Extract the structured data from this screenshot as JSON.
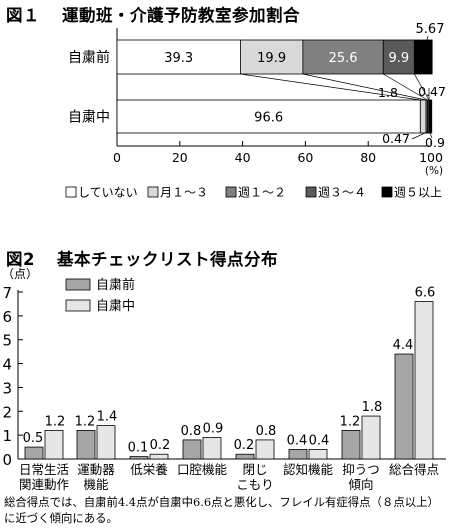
{
  "chart_data": [
    {
      "type": "bar",
      "orientation": "horizontal",
      "stacked": true,
      "title": "運動班・介護予防教室参加割合",
      "figure_label": "図１",
      "categories": [
        "自粛前",
        "自粛中"
      ],
      "series": [
        {
          "name": "していない",
          "values": [
            39.3,
            96.6
          ],
          "color": "#ffffff"
        },
        {
          "name": "月１～３",
          "values": [
            19.9,
            1.8
          ],
          "color": "#d9d9d9"
        },
        {
          "name": "週１～２",
          "values": [
            25.6,
            0.47
          ],
          "color": "#808080"
        },
        {
          "name": "週３～４",
          "values": [
            9.9,
            0.47
          ],
          "color": "#5a5a5a"
        },
        {
          "name": "週５以上",
          "values": [
            5.67,
            0.9
          ],
          "color": "#000000"
        }
      ],
      "data_labels": {
        "自粛前": [
          "39.3",
          "19.9",
          "25.6",
          "9.9",
          "5.67"
        ],
        "自粛中": [
          "96.6",
          "1.8",
          "0.47",
          "0.47",
          "0.9"
        ]
      },
      "xlim": [
        0,
        100
      ],
      "x_ticks": [
        "0",
        "20",
        "40",
        "60",
        "80",
        "100"
      ],
      "x_unit": "(%)",
      "legend_position": "bottom"
    },
    {
      "type": "bar",
      "orientation": "vertical",
      "title": "基本チェックリスト得点分布",
      "figure_label": "図2",
      "y_unit": "（点）",
      "ylim": [
        0,
        7
      ],
      "y_ticks": [
        "0",
        "1",
        "2",
        "3",
        "4",
        "5",
        "6",
        "7"
      ],
      "categories": [
        [
          "日常生活",
          "関連動作"
        ],
        [
          "運動器",
          "機能"
        ],
        [
          "低栄養"
        ],
        [
          "口腔機能"
        ],
        [
          "閉じ",
          "こもり"
        ],
        [
          "認知機能"
        ],
        [
          "抑うつ",
          "傾向"
        ],
        [
          "総合得点"
        ]
      ],
      "series": [
        {
          "name": "自粛前",
          "values": [
            0.5,
            1.2,
            0.1,
            0.8,
            0.2,
            0.4,
            1.2,
            4.4
          ],
          "color": "#a6a6a6"
        },
        {
          "name": "自粛中",
          "values": [
            1.2,
            1.4,
            0.2,
            0.9,
            0.8,
            0.4,
            1.8,
            6.6
          ],
          "color": "#e6e6e6"
        }
      ],
      "legend_position": "top-left"
    }
  ],
  "note": "総合得点では、自粛前4.4点が自粛中6.6点と悪化し、フレイル有症得点（８点以上）に近づく傾向にある。"
}
